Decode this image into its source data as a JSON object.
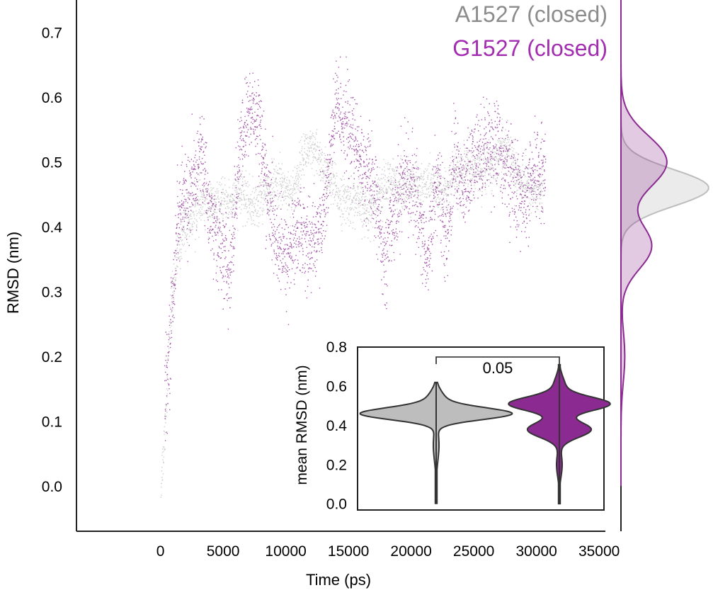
{
  "chart_data": [
    {
      "type": "scatter",
      "name": "main-timeseries",
      "xlabel": "Time (ps)",
      "ylabel": "RMSD (nm)",
      "xlim": [
        -6700,
        35500
      ],
      "ylim": [
        -0.07,
        0.75
      ],
      "xticks": [
        0,
        5000,
        10000,
        15000,
        20000,
        25000,
        30000,
        35000
      ],
      "yticks": [
        0.0,
        0.1,
        0.2,
        0.3,
        0.4,
        0.5,
        0.6,
        0.7
      ],
      "legend": {
        "placement": "top-right",
        "entries": [
          {
            "label": "A1527 (closed)",
            "color": "#8c8c8c"
          },
          {
            "label": "G1527 (closed)",
            "color": "#a22db0"
          }
        ]
      },
      "series": [
        {
          "name": "A1527 (closed)",
          "color": "#bdbdbd",
          "points": [
            [
              0,
              0.0
            ],
            [
              300,
              0.08
            ],
            [
              500,
              0.15
            ],
            [
              800,
              0.28
            ],
            [
              1200,
              0.34
            ],
            [
              1800,
              0.4
            ],
            [
              2500,
              0.42
            ],
            [
              3500,
              0.44
            ],
            [
              4500,
              0.43
            ],
            [
              5500,
              0.44
            ],
            [
              6500,
              0.45
            ],
            [
              7500,
              0.43
            ],
            [
              8500,
              0.46
            ],
            [
              9500,
              0.47
            ],
            [
              10500,
              0.45
            ],
            [
              11500,
              0.52
            ],
            [
              12500,
              0.51
            ],
            [
              13500,
              0.47
            ],
            [
              14500,
              0.44
            ],
            [
              15500,
              0.44
            ],
            [
              16500,
              0.42
            ],
            [
              17500,
              0.46
            ],
            [
              18500,
              0.47
            ],
            [
              19500,
              0.46
            ],
            [
              20500,
              0.46
            ],
            [
              21500,
              0.47
            ],
            [
              22500,
              0.45
            ],
            [
              23500,
              0.48
            ],
            [
              24500,
              0.49
            ],
            [
              25500,
              0.49
            ],
            [
              26500,
              0.5
            ],
            [
              27500,
              0.53
            ],
            [
              28500,
              0.48
            ],
            [
              29500,
              0.46
            ],
            [
              30500,
              0.45
            ]
          ]
        },
        {
          "name": "G1527 (closed)",
          "color": "#8b2a91",
          "points": [
            [
              300,
              0.12
            ],
            [
              600,
              0.2
            ],
            [
              900,
              0.27
            ],
            [
              1300,
              0.41
            ],
            [
              1800,
              0.44
            ],
            [
              2500,
              0.45
            ],
            [
              3200,
              0.52
            ],
            [
              4000,
              0.41
            ],
            [
              4800,
              0.37
            ],
            [
              5500,
              0.32
            ],
            [
              6200,
              0.5
            ],
            [
              7000,
              0.58
            ],
            [
              7800,
              0.57
            ],
            [
              8500,
              0.45
            ],
            [
              9200,
              0.38
            ],
            [
              10000,
              0.35
            ],
            [
              11000,
              0.4
            ],
            [
              12000,
              0.37
            ],
            [
              13000,
              0.42
            ],
            [
              14000,
              0.59
            ],
            [
              15000,
              0.55
            ],
            [
              16000,
              0.5
            ],
            [
              17000,
              0.46
            ],
            [
              17800,
              0.35
            ],
            [
              18500,
              0.42
            ],
            [
              19500,
              0.48
            ],
            [
              20500,
              0.44
            ],
            [
              21200,
              0.34
            ],
            [
              22000,
              0.48
            ],
            [
              22800,
              0.38
            ],
            [
              23500,
              0.52
            ],
            [
              24000,
              0.45
            ],
            [
              25000,
              0.5
            ],
            [
              26000,
              0.53
            ],
            [
              27000,
              0.52
            ],
            [
              28000,
              0.47
            ],
            [
              29000,
              0.44
            ],
            [
              30000,
              0.48
            ],
            [
              30700,
              0.5
            ]
          ]
        }
      ]
    },
    {
      "type": "density",
      "name": "marginal-density",
      "ylim": [
        -0.07,
        0.75
      ],
      "series": [
        {
          "name": "A1527 (closed)",
          "color": "#bdbdbd",
          "peak": 0.46,
          "sd": 0.028
        },
        {
          "name": "G1527 (closed)",
          "color": "#8b2a91",
          "peaks": [
            0.5,
            0.37
          ],
          "sds": [
            0.04,
            0.035
          ],
          "weights": [
            0.6,
            0.4
          ]
        }
      ]
    },
    {
      "type": "violin",
      "name": "inset-violin",
      "ylabel": "mean RMSD (nm)",
      "ylim": [
        -0.03,
        0.8
      ],
      "yticks": [
        0.0,
        0.2,
        0.4,
        0.6,
        0.8
      ],
      "annotation": "0.05",
      "groups": [
        {
          "name": "A1527 (closed)",
          "color": "#bdbdbd",
          "min": 0.0,
          "max": 0.62,
          "mode": 0.46
        },
        {
          "name": "G1527 (closed)",
          "color": "#8b2a91",
          "min": 0.0,
          "max": 0.71,
          "mode": 0.5
        }
      ]
    }
  ]
}
